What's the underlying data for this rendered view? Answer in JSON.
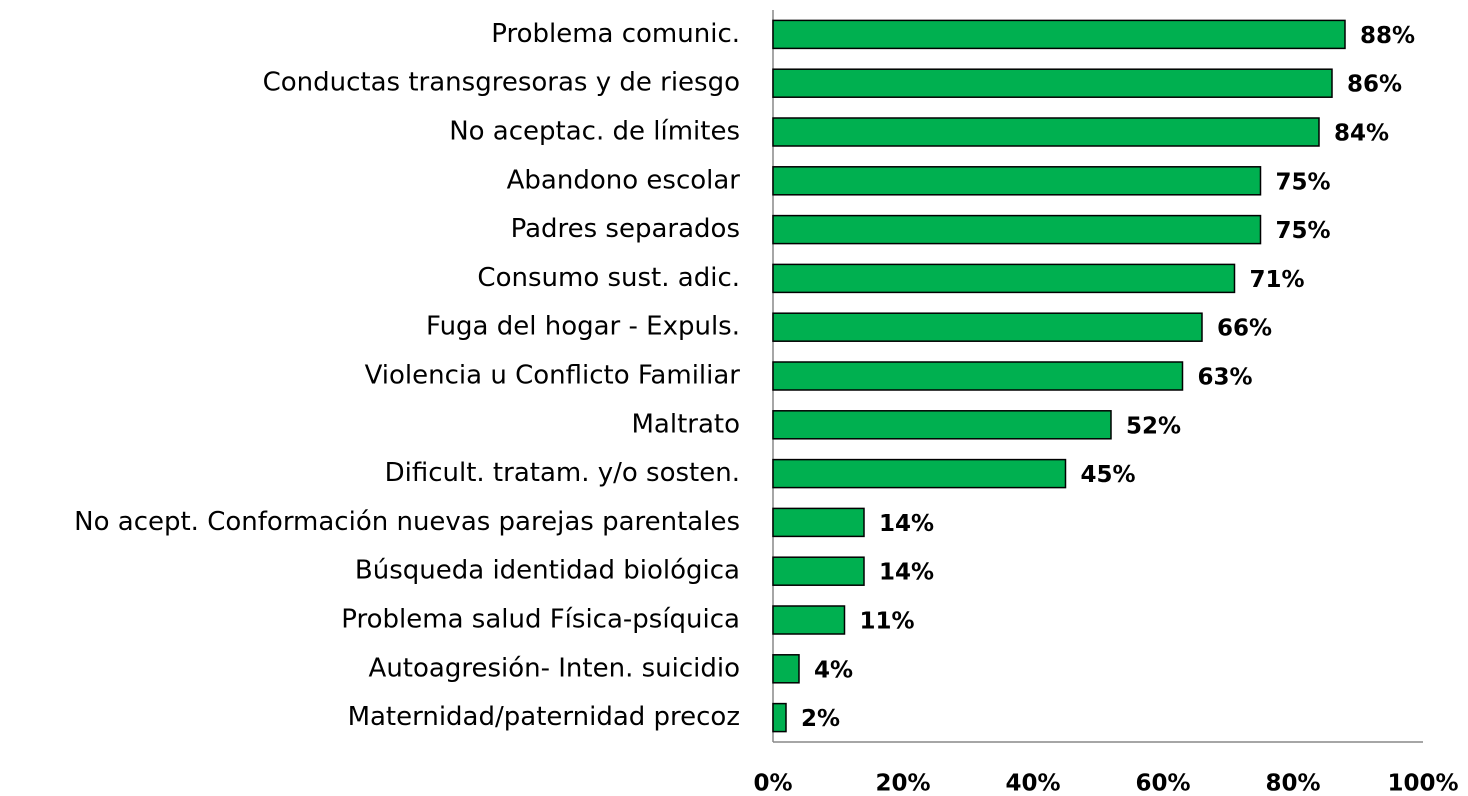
{
  "chart_data": {
    "type": "bar",
    "orientation": "horizontal",
    "categories": [
      "Problema comunic.",
      "Conductas transgresoras y de riesgo",
      "No aceptac. de límites",
      "Abandono escolar",
      "Padres separados",
      "Consumo sust. adic.",
      "Fuga del hogar - Expuls.",
      "Violencia u Conflicto Familiar",
      "Maltrato",
      "Dificult. tratam. y/o sosten.",
      "No acept. Conformación nuevas parejas parentales",
      "Búsqueda  identidad biológica",
      "Problema salud Física-psíquica",
      "Autoagresión- Inten. suicidio",
      "Maternidad/paternidad precoz"
    ],
    "values": [
      88,
      86,
      84,
      75,
      75,
      71,
      66,
      63,
      52,
      45,
      14,
      14,
      11,
      4,
      2
    ],
    "value_labels": [
      "88%",
      "86%",
      "84%",
      "75%",
      "75%",
      "71%",
      "66%",
      "63%",
      "52%",
      "45%",
      "14%",
      "14%",
      "11%",
      "4%",
      "2%"
    ],
    "color": "#00b050",
    "xlim": [
      0,
      100
    ],
    "xticks": [
      {
        "value": 0,
        "label": "0%"
      },
      {
        "value": 20,
        "label": "20%"
      },
      {
        "value": 40,
        "label": "40%"
      },
      {
        "value": 60,
        "label": "60%"
      },
      {
        "value": 80,
        "label": "80%"
      },
      {
        "value": 100,
        "label": "100%"
      }
    ],
    "grid": false
  }
}
